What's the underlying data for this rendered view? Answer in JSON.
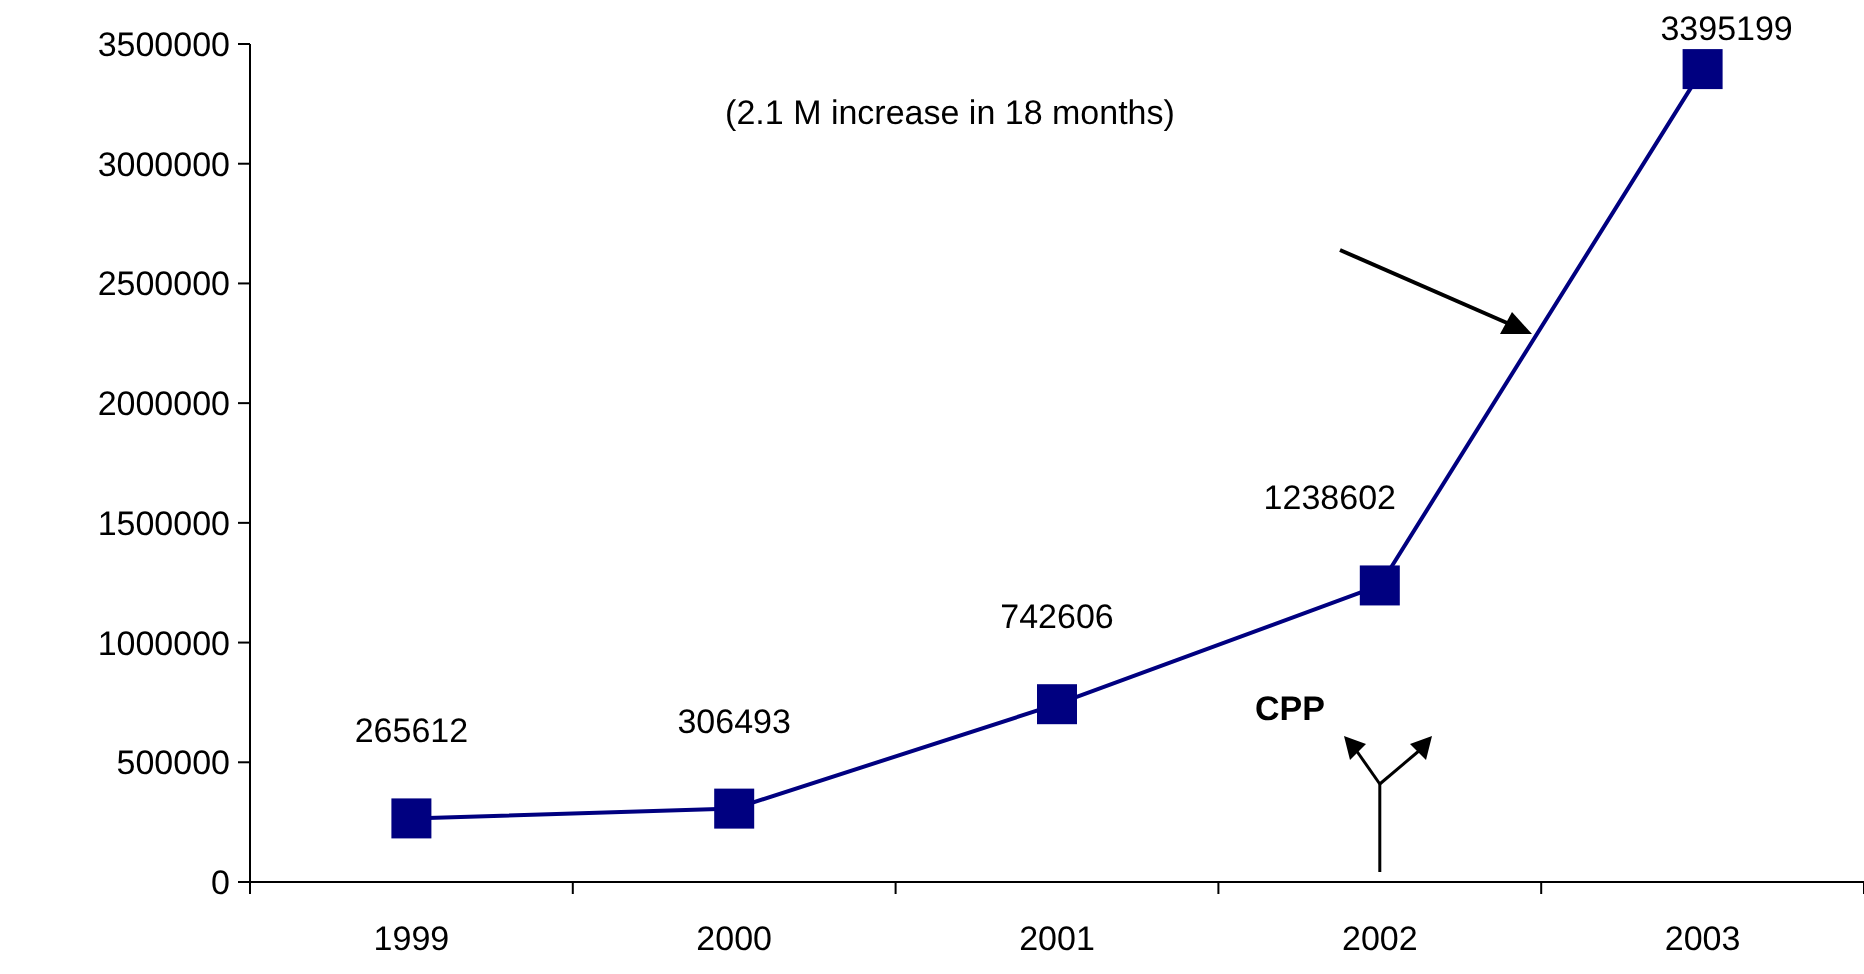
{
  "chart_data": {
    "type": "line",
    "categories": [
      "1999",
      "2000",
      "2001",
      "2002",
      "2003"
    ],
    "series": [
      {
        "color": "#000080",
        "values": [
          265612,
          306493,
          742606,
          1238602,
          3395199
        ]
      }
    ],
    "ylim": [
      0,
      3500000
    ],
    "yticks": [
      0,
      500000,
      1000000,
      1500000,
      2000000,
      2500000,
      3000000,
      3500000
    ],
    "marker": "square",
    "line_style": "solid",
    "data_labels": true,
    "annotations": [
      "(2.1 M increase in 18 months)",
      "CPP"
    ]
  }
}
